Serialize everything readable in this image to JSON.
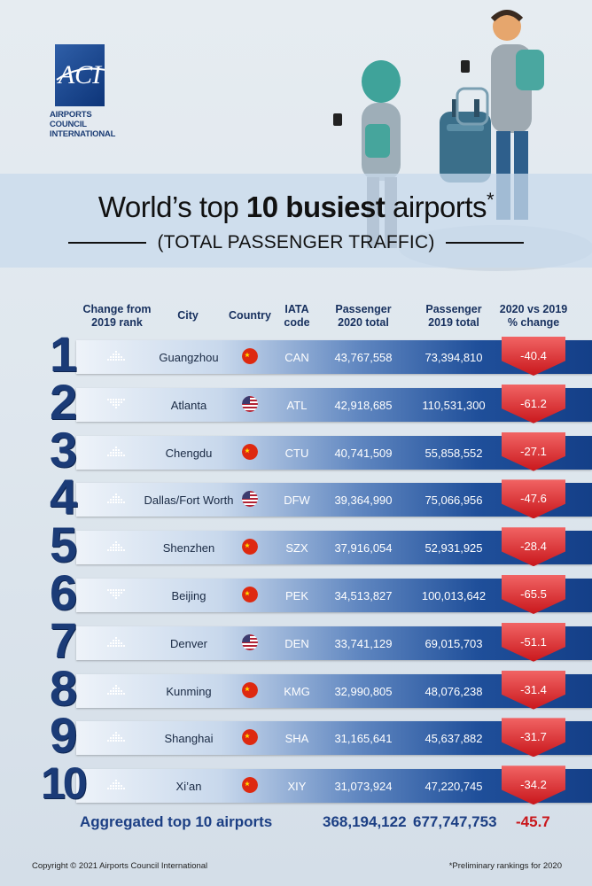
{
  "logo": {
    "mark": "ACI",
    "line1": "AIRPORTS COUNCIL",
    "line2": "INTERNATIONAL"
  },
  "title": {
    "part1": "World’s top ",
    "bold": "10 busiest",
    "part2": " airports",
    "asterisk": "*",
    "subtitle": "(TOTAL PASSENGER TRAFFIC)"
  },
  "headers": {
    "change": [
      "Change from",
      "2019 rank"
    ],
    "city": "City",
    "country": "Country",
    "iata": [
      "IATA",
      "code"
    ],
    "p2020": [
      "Passenger",
      "2020 total"
    ],
    "p2019": [
      "Passenger",
      "2019 total"
    ],
    "pct": [
      "2020 vs 2019",
      "% change"
    ]
  },
  "rows": [
    {
      "rank": "1",
      "change": "up",
      "city": "Guangzhou",
      "country": "china-flag-icon",
      "iata": "CAN",
      "p2020": "43,767,558",
      "p2019": "73,394,810",
      "pct": "-40.4"
    },
    {
      "rank": "2",
      "change": "down",
      "city": "Atlanta",
      "country": "usa-flag-icon",
      "iata": "ATL",
      "p2020": "42,918,685",
      "p2019": "110,531,300",
      "pct": "-61.2"
    },
    {
      "rank": "3",
      "change": "up",
      "city": "Chengdu",
      "country": "china-flag-icon",
      "iata": "CTU",
      "p2020": "40,741,509",
      "p2019": "55,858,552",
      "pct": "-27.1"
    },
    {
      "rank": "4",
      "change": "up",
      "city": "Dallas/Fort Worth",
      "country": "usa-flag-icon",
      "iata": "DFW",
      "p2020": "39,364,990",
      "p2019": "75,066,956",
      "pct": "-47.6"
    },
    {
      "rank": "5",
      "change": "up",
      "city": "Shenzhen",
      "country": "china-flag-icon",
      "iata": "SZX",
      "p2020": "37,916,054",
      "p2019": "52,931,925",
      "pct": "-28.4"
    },
    {
      "rank": "6",
      "change": "down",
      "city": "Beijing",
      "country": "china-flag-icon",
      "iata": "PEK",
      "p2020": "34,513,827",
      "p2019": "100,013,642",
      "pct": "-65.5"
    },
    {
      "rank": "7",
      "change": "up",
      "city": "Denver",
      "country": "usa-flag-icon",
      "iata": "DEN",
      "p2020": "33,741,129",
      "p2019": "69,015,703",
      "pct": "-51.1"
    },
    {
      "rank": "8",
      "change": "up",
      "city": "Kunming",
      "country": "china-flag-icon",
      "iata": "KMG",
      "p2020": "32,990,805",
      "p2019": "48,076,238",
      "pct": "-31.4"
    },
    {
      "rank": "9",
      "change": "up",
      "city": "Shanghai",
      "country": "china-flag-icon",
      "iata": "SHA",
      "p2020": "31,165,641",
      "p2019": "45,637,882",
      "pct": "-31.7"
    },
    {
      "rank": "10",
      "change": "up",
      "city": "Xi’an",
      "country": "china-flag-icon",
      "iata": "XIY",
      "p2020": "31,073,924",
      "p2019": "47,220,745",
      "pct": "-34.2"
    }
  ],
  "aggregate": {
    "label": "Aggregated top 10 airports",
    "p2020": "368,194,122",
    "p2019": "677,747,753",
    "pct": "-45.7"
  },
  "footer": {
    "copyright": "Copyright © 2021 Airports Council International",
    "note": "*Preliminary rankings for 2020"
  },
  "colors": {
    "navy": "#1b3b77",
    "decline_red": "#c9171c",
    "bar_blue": "#1f4f9a"
  }
}
